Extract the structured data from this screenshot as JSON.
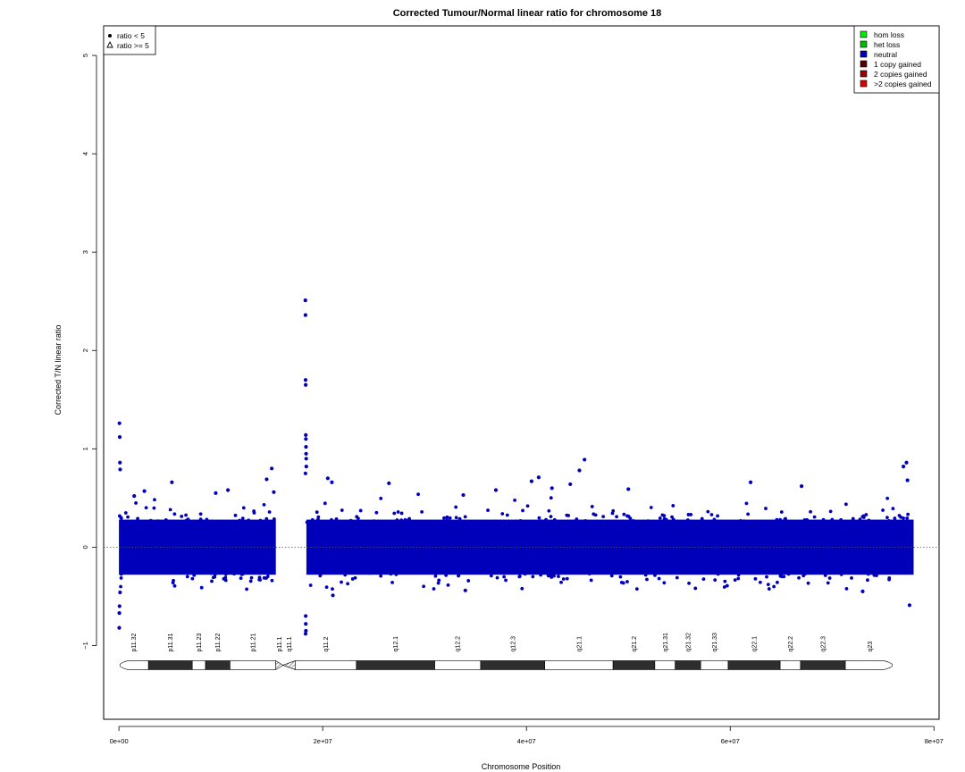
{
  "chart_data": {
    "type": "scatter",
    "title": "Corrected Tumour/Normal linear ratio for chromosome  18",
    "xlabel": "Chromosome Position",
    "ylabel": "Corrected T/N linear ratio",
    "xlim": [
      -1500000,
      80500000
    ],
    "ylim": [
      -1.75,
      5.3
    ],
    "x_ticks": [
      {
        "value": 0,
        "label": "0e+00"
      },
      {
        "value": 20000000,
        "label": "2e+07"
      },
      {
        "value": 40000000,
        "label": "4e+07"
      },
      {
        "value": 60000000,
        "label": "6e+07"
      },
      {
        "value": 80000000,
        "label": "8e+07"
      }
    ],
    "y_ticks": [
      {
        "value": -1,
        "label": "−1"
      },
      {
        "value": 0,
        "label": "0"
      },
      {
        "value": 1,
        "label": "1"
      },
      {
        "value": 2,
        "label": "2"
      },
      {
        "value": 3,
        "label": "3"
      },
      {
        "value": 4,
        "label": "4"
      },
      {
        "value": 5,
        "label": "5"
      }
    ],
    "reference_line": {
      "y": 0,
      "style": "dotted"
    },
    "series": [
      {
        "name": "neutral",
        "color": "#0000bb",
        "segments": [
          {
            "start": 0,
            "end": 15400000,
            "mean": 0.0,
            "spread": 0.28
          },
          {
            "start": 18400000,
            "end": 78000000,
            "mean": 0.0,
            "spread": 0.28
          }
        ],
        "notable_points": [
          {
            "x": 50000,
            "y": 1.26
          },
          {
            "x": 80000,
            "y": 1.12
          },
          {
            "x": 100000,
            "y": 0.86
          },
          {
            "x": 120000,
            "y": 0.79
          },
          {
            "x": 60000,
            "y": -0.6
          },
          {
            "x": 40000,
            "y": -0.67
          },
          {
            "x": 30000,
            "y": -0.82
          },
          {
            "x": 110000,
            "y": -0.46
          },
          {
            "x": 1500000,
            "y": 0.52
          },
          {
            "x": 2500000,
            "y": 0.57
          },
          {
            "x": 5200000,
            "y": 0.66
          },
          {
            "x": 9500000,
            "y": 0.55
          },
          {
            "x": 10700000,
            "y": 0.58
          },
          {
            "x": 14500000,
            "y": 0.69
          },
          {
            "x": 15000000,
            "y": 0.8
          },
          {
            "x": 15200000,
            "y": 0.56
          },
          {
            "x": 18300000,
            "y": 2.51
          },
          {
            "x": 18310000,
            "y": 2.36
          },
          {
            "x": 18320000,
            "y": 1.7
          },
          {
            "x": 18330000,
            "y": 1.65
          },
          {
            "x": 18340000,
            "y": 1.14
          },
          {
            "x": 18350000,
            "y": 1.1
          },
          {
            "x": 18360000,
            "y": 1.02
          },
          {
            "x": 18370000,
            "y": 0.95
          },
          {
            "x": 18380000,
            "y": 0.9
          },
          {
            "x": 18390000,
            "y": 0.82
          },
          {
            "x": 18310000,
            "y": 0.75
          },
          {
            "x": 18330000,
            "y": -0.7
          },
          {
            "x": 18340000,
            "y": -0.78
          },
          {
            "x": 18350000,
            "y": -0.85
          },
          {
            "x": 18320000,
            "y": -0.88
          },
          {
            "x": 20500000,
            "y": 0.7
          },
          {
            "x": 20900000,
            "y": 0.66
          },
          {
            "x": 26500000,
            "y": 0.65
          },
          {
            "x": 33800000,
            "y": 0.53
          },
          {
            "x": 37000000,
            "y": 0.58
          },
          {
            "x": 40500000,
            "y": 0.67
          },
          {
            "x": 41200000,
            "y": 0.71
          },
          {
            "x": 42500000,
            "y": 0.6
          },
          {
            "x": 44300000,
            "y": 0.64
          },
          {
            "x": 45200000,
            "y": 0.78
          },
          {
            "x": 45700000,
            "y": 0.89
          },
          {
            "x": 50000000,
            "y": 0.59
          },
          {
            "x": 62000000,
            "y": 0.66
          },
          {
            "x": 67000000,
            "y": 0.62
          },
          {
            "x": 77000000,
            "y": 0.82
          },
          {
            "x": 77300000,
            "y": 0.86
          },
          {
            "x": 77400000,
            "y": 0.68
          },
          {
            "x": 77600000,
            "y": -0.59
          },
          {
            "x": 21000000,
            "y": -0.49
          },
          {
            "x": 34000000,
            "y": -0.44
          },
          {
            "x": 73000000,
            "y": -0.45
          }
        ]
      }
    ],
    "legend_left": [
      {
        "symbol": "filled-circle",
        "label": "ratio < 5"
      },
      {
        "symbol": "open-triangle",
        "label": "ratio >= 5"
      }
    ],
    "legend_right": [
      {
        "color": "#00ee00",
        "label": "hom loss"
      },
      {
        "color": "#00bb00",
        "label": "het loss"
      },
      {
        "color": "#0000bb",
        "label": "neutral"
      },
      {
        "color": "#550000",
        "label": "1 copy gained"
      },
      {
        "color": "#990000",
        "label": "2 copies gained"
      },
      {
        "color": "#dd0000",
        "label": ">2 copies gained"
      }
    ],
    "ideogram": {
      "y": -1.2,
      "bands": [
        {
          "name": "p11.32",
          "start": 0,
          "end": 2900000,
          "stain": "gneg"
        },
        {
          "name": "p11.31",
          "start": 2900000,
          "end": 7200000,
          "stain": "gpos"
        },
        {
          "name": "p11.23",
          "start": 7200000,
          "end": 8500000,
          "stain": "gneg"
        },
        {
          "name": "p11.22",
          "start": 8500000,
          "end": 10900000,
          "stain": "gpos"
        },
        {
          "name": "p11.21",
          "start": 10900000,
          "end": 15400000,
          "stain": "gneg"
        },
        {
          "name": "p11.1",
          "start": 15400000,
          "end": 16100000,
          "stain": "acen-p"
        },
        {
          "name": "q11.1",
          "start": 16100000,
          "end": 17300000,
          "stain": "acen-q"
        },
        {
          "name": "q11.2",
          "start": 17300000,
          "end": 23300000,
          "stain": "gneg"
        },
        {
          "name": "q12.1",
          "start": 23300000,
          "end": 31000000,
          "stain": "gpos"
        },
        {
          "name": "q12.2",
          "start": 31000000,
          "end": 35500000,
          "stain": "gneg"
        },
        {
          "name": "q12.3",
          "start": 35500000,
          "end": 41800000,
          "stain": "gpos"
        },
        {
          "name": "q21.1",
          "start": 41800000,
          "end": 48500000,
          "stain": "gneg"
        },
        {
          "name": "q21.2",
          "start": 48500000,
          "end": 52600000,
          "stain": "gpos"
        },
        {
          "name": "q21.31",
          "start": 52600000,
          "end": 54600000,
          "stain": "gneg"
        },
        {
          "name": "q21.32",
          "start": 54600000,
          "end": 57100000,
          "stain": "gpos"
        },
        {
          "name": "q21.33",
          "start": 57100000,
          "end": 59800000,
          "stain": "gneg"
        },
        {
          "name": "q22.1",
          "start": 59800000,
          "end": 64900000,
          "stain": "gpos"
        },
        {
          "name": "q22.2",
          "start": 64900000,
          "end": 66900000,
          "stain": "gneg"
        },
        {
          "name": "q22.3",
          "start": 66900000,
          "end": 71300000,
          "stain": "gpos"
        },
        {
          "name": "q23",
          "start": 71300000,
          "end": 76100000,
          "stain": "gneg"
        }
      ],
      "end": 76100000
    }
  }
}
